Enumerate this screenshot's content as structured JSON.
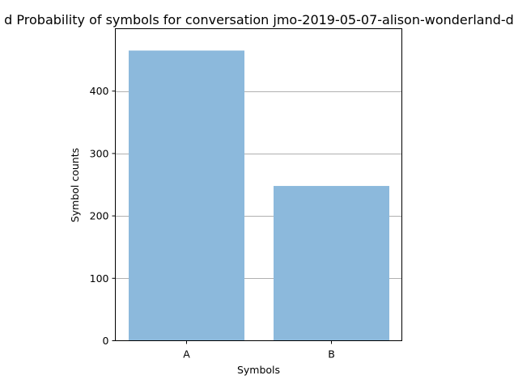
{
  "chart_data": {
    "type": "bar",
    "title": "d Probability of symbols for conversation jmo-2019-05-07-alison-wonderland-d",
    "xlabel": "Symbols",
    "ylabel": "Symbol counts",
    "categories": [
      "A",
      "B"
    ],
    "values": [
      465,
      248
    ],
    "ylim": [
      0,
      500
    ],
    "yticks": [
      0,
      100,
      200,
      300,
      400
    ],
    "grid": "y-major",
    "legend": "none",
    "bar_color": "#8cb9dc"
  }
}
